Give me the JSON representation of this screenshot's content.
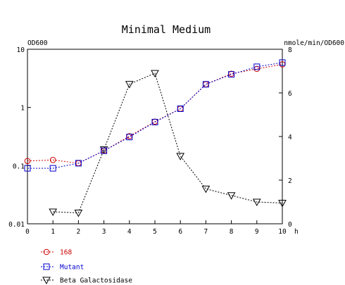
{
  "chart_data": {
    "type": "line",
    "title": "Minimal Medium",
    "left_axis": {
      "label": "OD600",
      "scale": "log",
      "range": [
        0.01,
        10
      ],
      "ticks": [
        0.01,
        0.1,
        1,
        10
      ],
      "tick_labels": [
        "0.01",
        "0.1",
        "1",
        "10"
      ]
    },
    "right_axis": {
      "label": "nmole/min/OD600",
      "scale": "linear",
      "range": [
        0,
        8
      ],
      "ticks": [
        0,
        2,
        4,
        6,
        8
      ],
      "tick_labels": [
        "0",
        "2",
        "4",
        "6",
        "8"
      ]
    },
    "x_axis": {
      "unit_label": "h",
      "range": [
        0,
        10
      ],
      "ticks": [
        0,
        1,
        2,
        3,
        4,
        5,
        6,
        7,
        8,
        9,
        10
      ],
      "tick_labels": [
        "0",
        "1",
        "2",
        "3",
        "4",
        "5",
        "6",
        "7",
        "8",
        "9",
        "10"
      ]
    },
    "grid": false,
    "legend_position": "bottom-left",
    "series": [
      {
        "name": "168",
        "axis": "left",
        "marker": "circle",
        "color": "#cc0000",
        "x": [
          0,
          1,
          2,
          3,
          4,
          5,
          6,
          7,
          8,
          9,
          10
        ],
        "y": [
          0.12,
          0.125,
          0.11,
          0.18,
          0.32,
          0.57,
          0.95,
          2.5,
          3.8,
          4.6,
          5.5
        ]
      },
      {
        "name": "Mutant",
        "axis": "left",
        "marker": "square",
        "color": "#0000cc",
        "x": [
          0,
          1,
          2,
          3,
          4,
          5,
          6,
          7,
          8,
          9,
          10
        ],
        "y": [
          0.09,
          0.09,
          0.11,
          0.18,
          0.31,
          0.56,
          0.95,
          2.5,
          3.7,
          5.0,
          5.9
        ]
      },
      {
        "name": "Beta Galactosidase",
        "axis": "right",
        "marker": "triangle-down",
        "color": "#000000",
        "x": [
          1,
          2,
          3,
          4,
          5,
          6,
          7,
          8,
          9,
          10
        ],
        "y": [
          0.55,
          0.5,
          3.4,
          6.4,
          6.9,
          3.1,
          1.6,
          1.3,
          1.0,
          0.95
        ]
      }
    ]
  }
}
